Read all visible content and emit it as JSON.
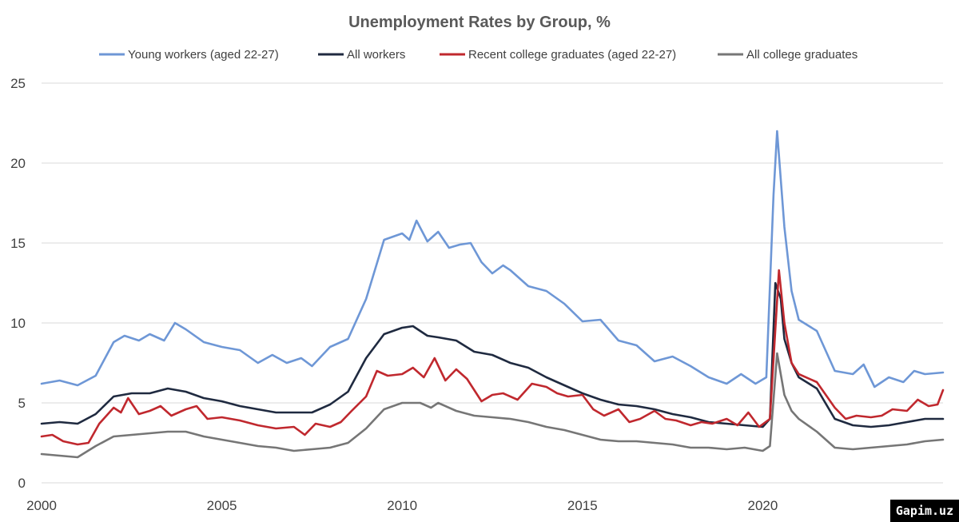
{
  "watermark": "Gapim.uz",
  "chart_data": {
    "type": "line",
    "title": "Unemployment Rates by Group, %",
    "xlabel": "",
    "ylabel": "",
    "xlim": [
      2000,
      2025
    ],
    "ylim": [
      0,
      25
    ],
    "x_ticks": [
      2000,
      2005,
      2010,
      2015,
      2020
    ],
    "y_ticks": [
      0,
      5,
      10,
      15,
      20,
      25
    ],
    "grid": "horizontal",
    "legend_position": "top",
    "series": [
      {
        "name": "Young workers (aged 22-27)",
        "color": "#6e97d6",
        "points": [
          [
            2000,
            6.2
          ],
          [
            2000.5,
            6.4
          ],
          [
            2001,
            6.1
          ],
          [
            2001.5,
            6.7
          ],
          [
            2002,
            8.8
          ],
          [
            2002.3,
            9.2
          ],
          [
            2002.7,
            8.9
          ],
          [
            2003,
            9.3
          ],
          [
            2003.4,
            8.9
          ],
          [
            2003.7,
            10.0
          ],
          [
            2004,
            9.6
          ],
          [
            2004.5,
            8.8
          ],
          [
            2005,
            8.5
          ],
          [
            2005.5,
            8.3
          ],
          [
            2006,
            7.5
          ],
          [
            2006.4,
            8.0
          ],
          [
            2006.8,
            7.5
          ],
          [
            2007.2,
            7.8
          ],
          [
            2007.5,
            7.3
          ],
          [
            2008,
            8.5
          ],
          [
            2008.5,
            9.0
          ],
          [
            2009,
            11.5
          ],
          [
            2009.5,
            15.2
          ],
          [
            2010,
            15.6
          ],
          [
            2010.2,
            15.2
          ],
          [
            2010.4,
            16.4
          ],
          [
            2010.7,
            15.1
          ],
          [
            2011,
            15.7
          ],
          [
            2011.3,
            14.7
          ],
          [
            2011.6,
            14.9
          ],
          [
            2011.9,
            15.0
          ],
          [
            2012.2,
            13.8
          ],
          [
            2012.5,
            13.1
          ],
          [
            2012.8,
            13.6
          ],
          [
            2013,
            13.3
          ],
          [
            2013.5,
            12.3
          ],
          [
            2014,
            12.0
          ],
          [
            2014.5,
            11.2
          ],
          [
            2015,
            10.1
          ],
          [
            2015.5,
            10.2
          ],
          [
            2016,
            8.9
          ],
          [
            2016.5,
            8.6
          ],
          [
            2017,
            7.6
          ],
          [
            2017.5,
            7.9
          ],
          [
            2018,
            7.3
          ],
          [
            2018.5,
            6.6
          ],
          [
            2019,
            6.2
          ],
          [
            2019.4,
            6.8
          ],
          [
            2019.8,
            6.2
          ],
          [
            2020.1,
            6.6
          ],
          [
            2020.3,
            18.0
          ],
          [
            2020.4,
            22.0
          ],
          [
            2020.6,
            16.0
          ],
          [
            2020.8,
            12.0
          ],
          [
            2021,
            10.2
          ],
          [
            2021.5,
            9.5
          ],
          [
            2022,
            7.0
          ],
          [
            2022.5,
            6.8
          ],
          [
            2022.8,
            7.4
          ],
          [
            2023.1,
            6.0
          ],
          [
            2023.5,
            6.6
          ],
          [
            2023.9,
            6.3
          ],
          [
            2024.2,
            7.0
          ],
          [
            2024.5,
            6.8
          ],
          [
            2025,
            6.9
          ]
        ]
      },
      {
        "name": "All workers",
        "color": "#1f2a40",
        "points": [
          [
            2000,
            3.7
          ],
          [
            2000.5,
            3.8
          ],
          [
            2001,
            3.7
          ],
          [
            2001.5,
            4.3
          ],
          [
            2002,
            5.4
          ],
          [
            2002.5,
            5.6
          ],
          [
            2003,
            5.6
          ],
          [
            2003.5,
            5.9
          ],
          [
            2004,
            5.7
          ],
          [
            2004.5,
            5.3
          ],
          [
            2005,
            5.1
          ],
          [
            2005.5,
            4.8
          ],
          [
            2006,
            4.6
          ],
          [
            2006.5,
            4.4
          ],
          [
            2007,
            4.4
          ],
          [
            2007.5,
            4.4
          ],
          [
            2008,
            4.9
          ],
          [
            2008.5,
            5.7
          ],
          [
            2009,
            7.8
          ],
          [
            2009.5,
            9.3
          ],
          [
            2010,
            9.7
          ],
          [
            2010.3,
            9.8
          ],
          [
            2010.7,
            9.2
          ],
          [
            2011,
            9.1
          ],
          [
            2011.5,
            8.9
          ],
          [
            2012,
            8.2
          ],
          [
            2012.5,
            8.0
          ],
          [
            2013,
            7.5
          ],
          [
            2013.5,
            7.2
          ],
          [
            2014,
            6.6
          ],
          [
            2014.5,
            6.1
          ],
          [
            2015,
            5.6
          ],
          [
            2015.5,
            5.2
          ],
          [
            2016,
            4.9
          ],
          [
            2016.5,
            4.8
          ],
          [
            2017,
            4.6
          ],
          [
            2017.5,
            4.3
          ],
          [
            2018,
            4.1
          ],
          [
            2018.5,
            3.8
          ],
          [
            2019,
            3.7
          ],
          [
            2019.5,
            3.6
          ],
          [
            2020,
            3.5
          ],
          [
            2020.2,
            4.0
          ],
          [
            2020.35,
            12.5
          ],
          [
            2020.5,
            11.5
          ],
          [
            2020.6,
            9.0
          ],
          [
            2020.8,
            7.5
          ],
          [
            2021,
            6.6
          ],
          [
            2021.5,
            5.9
          ],
          [
            2022,
            4.0
          ],
          [
            2022.5,
            3.6
          ],
          [
            2023,
            3.5
          ],
          [
            2023.5,
            3.6
          ],
          [
            2024,
            3.8
          ],
          [
            2024.5,
            4.0
          ],
          [
            2025,
            4.0
          ]
        ]
      },
      {
        "name": "Recent college graduates (aged 22-27)",
        "color": "#c0282e",
        "points": [
          [
            2000,
            2.9
          ],
          [
            2000.3,
            3.0
          ],
          [
            2000.6,
            2.6
          ],
          [
            2001,
            2.4
          ],
          [
            2001.3,
            2.5
          ],
          [
            2001.6,
            3.7
          ],
          [
            2002,
            4.7
          ],
          [
            2002.2,
            4.4
          ],
          [
            2002.4,
            5.3
          ],
          [
            2002.7,
            4.3
          ],
          [
            2003,
            4.5
          ],
          [
            2003.3,
            4.8
          ],
          [
            2003.6,
            4.2
          ],
          [
            2004,
            4.6
          ],
          [
            2004.3,
            4.8
          ],
          [
            2004.6,
            4.0
          ],
          [
            2005,
            4.1
          ],
          [
            2005.5,
            3.9
          ],
          [
            2006,
            3.6
          ],
          [
            2006.5,
            3.4
          ],
          [
            2007,
            3.5
          ],
          [
            2007.3,
            3.0
          ],
          [
            2007.6,
            3.7
          ],
          [
            2008,
            3.5
          ],
          [
            2008.3,
            3.8
          ],
          [
            2008.6,
            4.5
          ],
          [
            2009,
            5.4
          ],
          [
            2009.3,
            7.0
          ],
          [
            2009.6,
            6.7
          ],
          [
            2010,
            6.8
          ],
          [
            2010.3,
            7.2
          ],
          [
            2010.6,
            6.6
          ],
          [
            2010.9,
            7.8
          ],
          [
            2011.2,
            6.4
          ],
          [
            2011.5,
            7.1
          ],
          [
            2011.8,
            6.5
          ],
          [
            2012.2,
            5.1
          ],
          [
            2012.5,
            5.5
          ],
          [
            2012.8,
            5.6
          ],
          [
            2013.2,
            5.2
          ],
          [
            2013.6,
            6.2
          ],
          [
            2014,
            6.0
          ],
          [
            2014.3,
            5.6
          ],
          [
            2014.6,
            5.4
          ],
          [
            2015,
            5.5
          ],
          [
            2015.3,
            4.6
          ],
          [
            2015.6,
            4.2
          ],
          [
            2016,
            4.6
          ],
          [
            2016.3,
            3.8
          ],
          [
            2016.6,
            4.0
          ],
          [
            2017,
            4.5
          ],
          [
            2017.3,
            4.0
          ],
          [
            2017.6,
            3.9
          ],
          [
            2018,
            3.6
          ],
          [
            2018.3,
            3.8
          ],
          [
            2018.6,
            3.7
          ],
          [
            2019,
            4.0
          ],
          [
            2019.3,
            3.6
          ],
          [
            2019.6,
            4.4
          ],
          [
            2019.9,
            3.5
          ],
          [
            2020.2,
            4.0
          ],
          [
            2020.45,
            13.3
          ],
          [
            2020.6,
            10.0
          ],
          [
            2020.8,
            7.5
          ],
          [
            2021,
            6.8
          ],
          [
            2021.5,
            6.3
          ],
          [
            2022,
            4.7
          ],
          [
            2022.3,
            4.0
          ],
          [
            2022.6,
            4.2
          ],
          [
            2023,
            4.1
          ],
          [
            2023.3,
            4.2
          ],
          [
            2023.6,
            4.6
          ],
          [
            2024,
            4.5
          ],
          [
            2024.3,
            5.2
          ],
          [
            2024.6,
            4.8
          ],
          [
            2024.85,
            4.9
          ],
          [
            2025,
            5.8
          ]
        ]
      },
      {
        "name": "All college graduates",
        "color": "#767676",
        "points": [
          [
            2000,
            1.8
          ],
          [
            2000.5,
            1.7
          ],
          [
            2001,
            1.6
          ],
          [
            2001.5,
            2.3
          ],
          [
            2002,
            2.9
          ],
          [
            2002.5,
            3.0
          ],
          [
            2003,
            3.1
          ],
          [
            2003.5,
            3.2
          ],
          [
            2004,
            3.2
          ],
          [
            2004.5,
            2.9
          ],
          [
            2005,
            2.7
          ],
          [
            2005.5,
            2.5
          ],
          [
            2006,
            2.3
          ],
          [
            2006.5,
            2.2
          ],
          [
            2007,
            2.0
          ],
          [
            2007.5,
            2.1
          ],
          [
            2008,
            2.2
          ],
          [
            2008.5,
            2.5
          ],
          [
            2009,
            3.4
          ],
          [
            2009.5,
            4.6
          ],
          [
            2010,
            5.0
          ],
          [
            2010.5,
            5.0
          ],
          [
            2010.8,
            4.7
          ],
          [
            2011,
            5.0
          ],
          [
            2011.5,
            4.5
          ],
          [
            2012,
            4.2
          ],
          [
            2012.5,
            4.1
          ],
          [
            2013,
            4.0
          ],
          [
            2013.5,
            3.8
          ],
          [
            2014,
            3.5
          ],
          [
            2014.5,
            3.3
          ],
          [
            2015,
            3.0
          ],
          [
            2015.5,
            2.7
          ],
          [
            2016,
            2.6
          ],
          [
            2016.5,
            2.6
          ],
          [
            2017,
            2.5
          ],
          [
            2017.5,
            2.4
          ],
          [
            2018,
            2.2
          ],
          [
            2018.5,
            2.2
          ],
          [
            2019,
            2.1
          ],
          [
            2019.5,
            2.2
          ],
          [
            2020,
            2.0
          ],
          [
            2020.2,
            2.3
          ],
          [
            2020.4,
            8.1
          ],
          [
            2020.6,
            5.5
          ],
          [
            2020.8,
            4.5
          ],
          [
            2021,
            4.0
          ],
          [
            2021.5,
            3.2
          ],
          [
            2022,
            2.2
          ],
          [
            2022.5,
            2.1
          ],
          [
            2023,
            2.2
          ],
          [
            2023.5,
            2.3
          ],
          [
            2024,
            2.4
          ],
          [
            2024.5,
            2.6
          ],
          [
            2025,
            2.7
          ]
        ]
      }
    ]
  }
}
